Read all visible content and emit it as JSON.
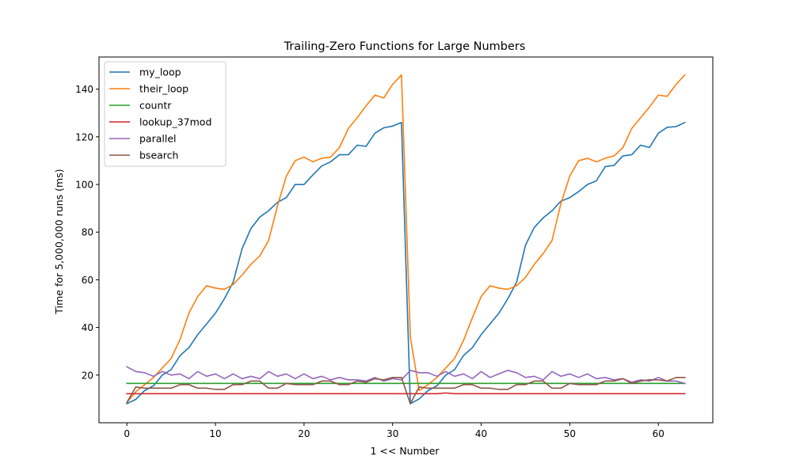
{
  "chart_data": {
    "type": "line",
    "title": "Trailing-Zero Functions for Large Numbers",
    "xlabel": "1 << Number",
    "ylabel": "Time for 5,000,000 runs (ms)",
    "xlim": [
      -3.15,
      66.15
    ],
    "ylim": [
      0.0,
      153.5
    ],
    "xticks": [
      0,
      10,
      20,
      30,
      40,
      50,
      60
    ],
    "yticks": [
      20,
      40,
      60,
      80,
      100,
      120,
      140
    ],
    "grid": false,
    "legend_position": "top-left",
    "x": [
      0,
      1,
      2,
      3,
      4,
      5,
      6,
      7,
      8,
      9,
      10,
      11,
      12,
      13,
      14,
      15,
      16,
      17,
      18,
      19,
      20,
      21,
      22,
      23,
      24,
      25,
      26,
      27,
      28,
      29,
      30,
      31,
      32,
      33,
      34,
      35,
      36,
      37,
      38,
      39,
      40,
      41,
      42,
      43,
      44,
      45,
      46,
      47,
      48,
      49,
      50,
      51,
      52,
      53,
      54,
      55,
      56,
      57,
      58,
      59,
      60,
      61,
      62,
      63
    ],
    "series": [
      {
        "name": "my_loop",
        "color": "#1f77b4",
        "values": [
          8.0,
          9.8,
          13.5,
          15.5,
          20.0,
          22.3,
          28.2,
          31.5,
          37.0,
          41.5,
          46.0,
          52.0,
          59.0,
          73.0,
          81.5,
          86.3,
          89.0,
          92.5,
          94.5,
          100.0,
          100.0,
          104.0,
          107.8,
          109.5,
          112.5,
          112.5,
          116.5,
          116.0,
          121.5,
          123.8,
          124.5,
          126.0,
          8.0,
          10.0,
          13.5,
          15.5,
          20.0,
          22.3,
          28.2,
          31.5,
          37.0,
          41.5,
          46.0,
          52.0,
          59.0,
          74.5,
          82.0,
          86.0,
          89.0,
          93.0,
          94.5,
          97.0,
          100.0,
          101.5,
          107.5,
          108.0,
          112.0,
          112.5,
          116.5,
          115.5,
          121.5,
          124.0,
          124.3,
          126.0
        ]
      },
      {
        "name": "their_loop",
        "color": "#ff7f0e",
        "values": [
          8.5,
          13.0,
          16.0,
          19.0,
          23.0,
          27.0,
          35.0,
          46.0,
          53.0,
          57.5,
          56.5,
          56.0,
          58.0,
          62.0,
          66.5,
          70.0,
          76.5,
          91.0,
          103.5,
          110.0,
          111.5,
          109.5,
          111.0,
          111.5,
          115.5,
          123.5,
          128.0,
          133.0,
          137.5,
          136.3,
          142.0,
          146.0,
          36.0,
          13.5,
          16.0,
          19.0,
          23.0,
          27.0,
          34.5,
          44.0,
          53.0,
          57.5,
          56.5,
          56.0,
          57.5,
          61.0,
          66.5,
          71.0,
          76.5,
          92.0,
          103.5,
          110.0,
          111.0,
          109.5,
          111.0,
          112.0,
          115.5,
          123.5,
          128.0,
          132.5,
          137.5,
          137.0,
          142.0,
          146.0
        ]
      },
      {
        "name": "countr",
        "color": "#2ca02c",
        "values": [
          16.5,
          16.5,
          16.5,
          16.5,
          16.5,
          16.5,
          16.5,
          16.5,
          16.5,
          16.5,
          16.5,
          16.5,
          16.5,
          16.5,
          16.5,
          16.5,
          16.5,
          16.5,
          16.5,
          16.5,
          16.5,
          16.5,
          16.5,
          16.5,
          16.5,
          16.5,
          16.5,
          16.5,
          16.5,
          16.5,
          16.5,
          16.5,
          16.5,
          16.5,
          16.5,
          16.5,
          16.5,
          16.5,
          16.5,
          16.5,
          16.5,
          16.5,
          16.5,
          16.5,
          16.5,
          16.5,
          16.5,
          16.5,
          16.5,
          16.5,
          16.5,
          16.5,
          16.5,
          16.5,
          16.5,
          16.5,
          16.5,
          16.5,
          16.5,
          16.5,
          16.5,
          16.5,
          16.5,
          16.5
        ]
      },
      {
        "name": "lookup_37mod",
        "color": "#d62728",
        "values": [
          12.2,
          12.2,
          12.2,
          12.2,
          12.2,
          12.2,
          12.2,
          12.2,
          12.2,
          12.2,
          12.2,
          12.2,
          12.2,
          12.2,
          12.2,
          12.2,
          12.2,
          12.2,
          12.2,
          12.2,
          12.2,
          12.2,
          12.2,
          12.2,
          12.2,
          12.2,
          12.2,
          12.2,
          12.2,
          12.2,
          12.2,
          12.2,
          12.2,
          12.2,
          12.2,
          12.2,
          12.5,
          12.2,
          12.2,
          12.2,
          12.2,
          12.2,
          12.2,
          12.2,
          12.2,
          12.2,
          12.2,
          12.2,
          12.2,
          12.2,
          12.2,
          12.2,
          12.2,
          12.2,
          12.2,
          12.2,
          12.2,
          12.2,
          12.2,
          12.2,
          12.2,
          12.2,
          12.2,
          12.2
        ]
      },
      {
        "name": "parallel",
        "color": "#9467bd",
        "values": [
          23.5,
          21.5,
          21.0,
          19.5,
          21.5,
          20.0,
          20.5,
          18.5,
          21.5,
          19.5,
          20.5,
          18.5,
          20.5,
          18.5,
          19.5,
          18.5,
          21.5,
          19.5,
          20.5,
          18.5,
          20.5,
          18.5,
          19.5,
          18.0,
          19.0,
          18.0,
          18.0,
          17.5,
          19.0,
          17.5,
          18.5,
          18.0,
          22.0,
          21.0,
          21.0,
          19.5,
          21.5,
          19.5,
          20.5,
          18.5,
          21.5,
          19.0,
          20.5,
          22.0,
          21.0,
          19.0,
          19.5,
          18.0,
          21.5,
          19.5,
          20.5,
          19.0,
          20.5,
          18.5,
          19.0,
          18.0,
          18.5,
          17.0,
          18.0,
          17.5,
          19.0,
          17.5,
          17.5,
          16.5
        ]
      },
      {
        "name": "bsearch",
        "color": "#8c564b",
        "values": [
          8.5,
          15.0,
          14.5,
          14.5,
          14.5,
          14.5,
          16.0,
          16.0,
          14.5,
          14.5,
          14.0,
          14.0,
          16.0,
          16.0,
          17.5,
          17.5,
          14.5,
          14.5,
          16.5,
          16.0,
          16.0,
          16.0,
          17.5,
          17.5,
          16.0,
          16.0,
          17.5,
          17.0,
          18.5,
          18.0,
          19.0,
          19.0,
          8.0,
          15.0,
          14.5,
          14.5,
          14.5,
          14.5,
          16.0,
          16.0,
          14.5,
          14.5,
          14.0,
          14.0,
          16.0,
          16.0,
          17.5,
          17.5,
          14.5,
          14.5,
          16.5,
          16.0,
          16.0,
          16.0,
          17.5,
          17.5,
          18.5,
          16.5,
          17.5,
          18.0,
          18.0,
          17.5,
          19.0,
          19.0
        ]
      }
    ]
  }
}
